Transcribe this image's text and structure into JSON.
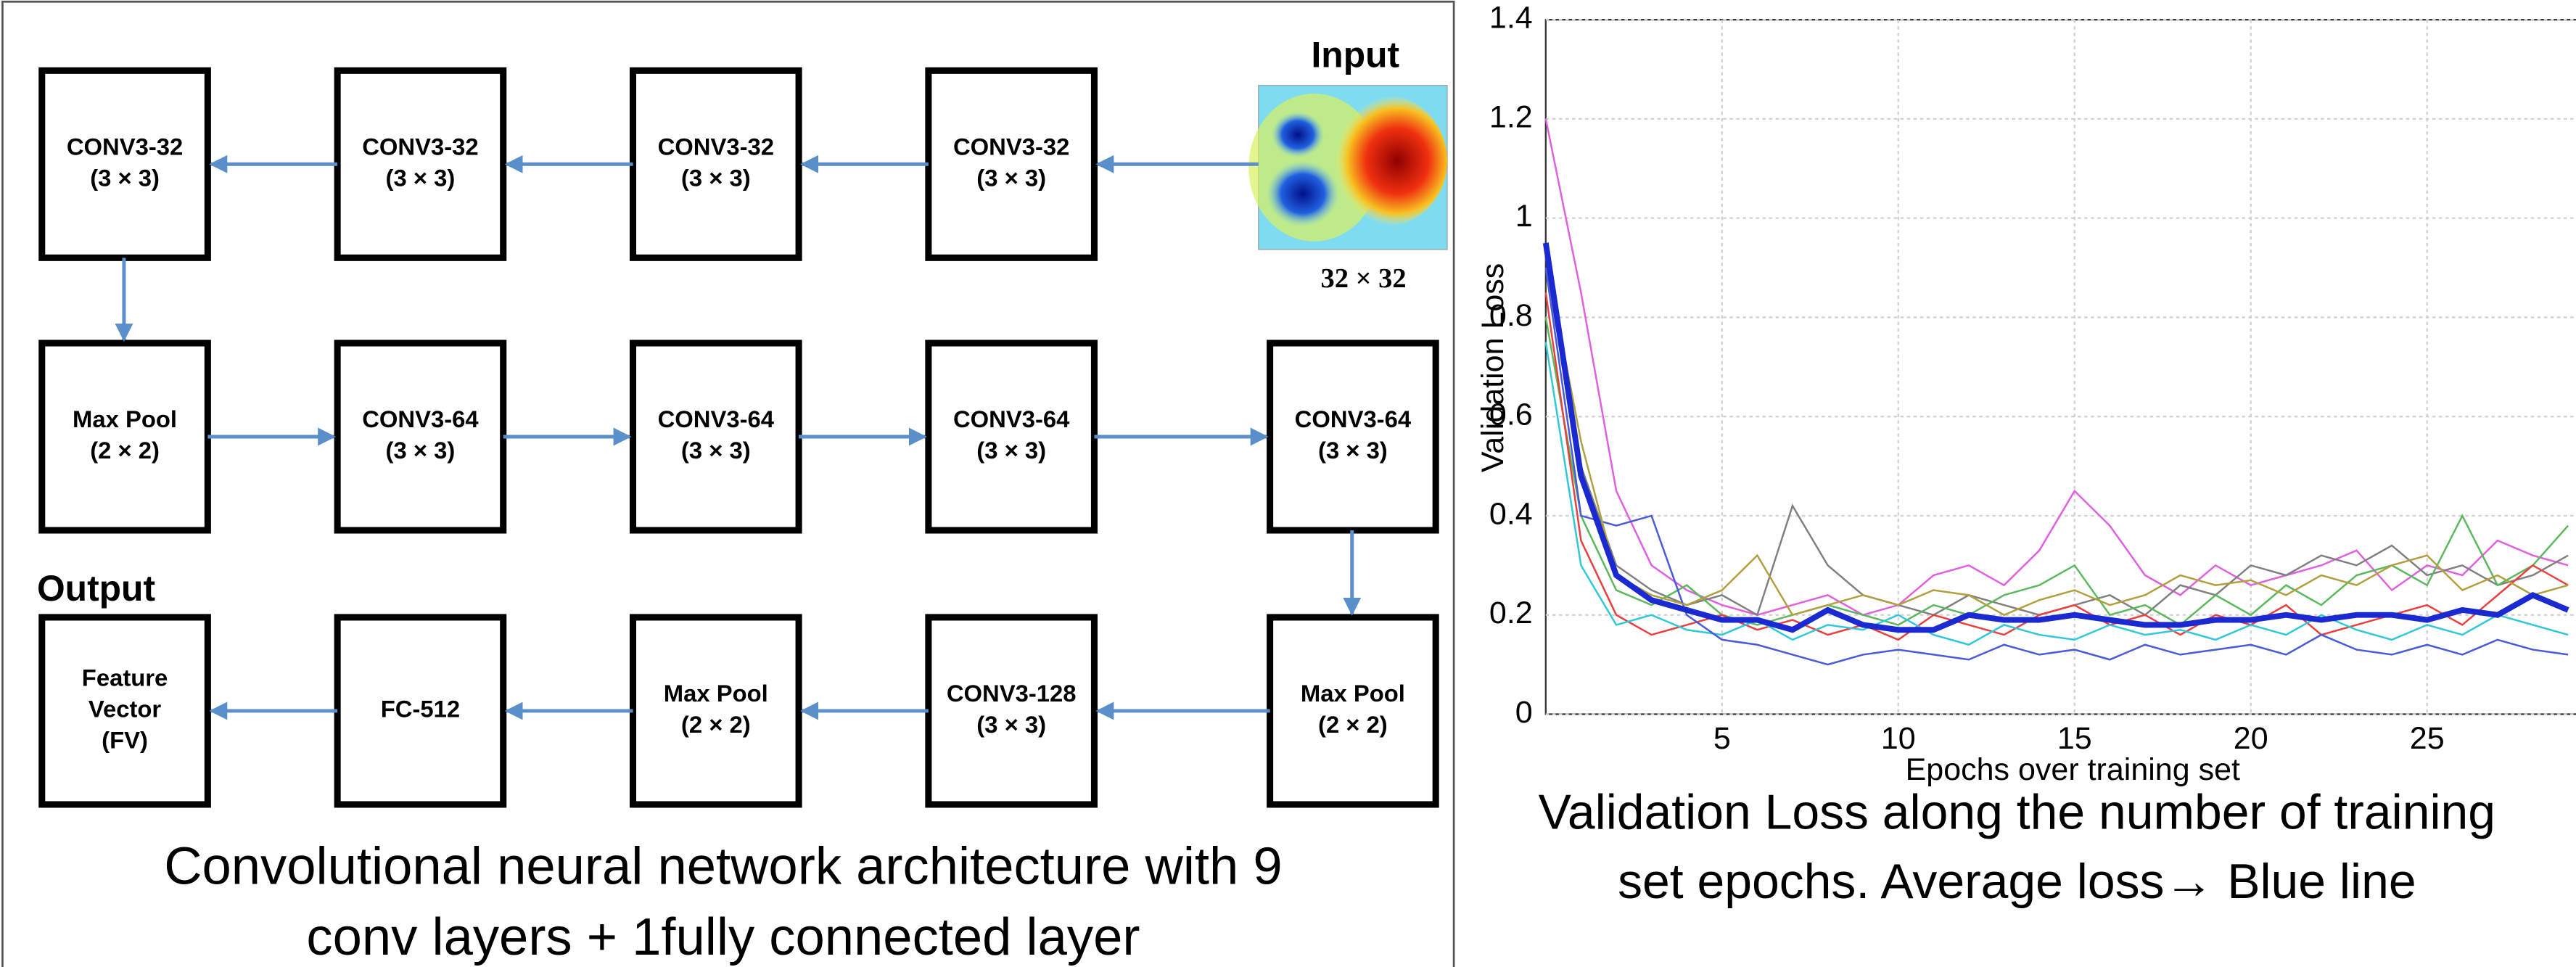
{
  "diagram": {
    "input_label": "Input",
    "input_size": "32 × 32",
    "output_label": "Output",
    "nodes": [
      {
        "label": [
          "CONV3-32",
          "(3 × 3)"
        ]
      },
      {
        "label": [
          "CONV3-32",
          "(3 × 3)"
        ]
      },
      {
        "label": [
          "CONV3-32",
          "(3 × 3)"
        ]
      },
      {
        "label": [
          "CONV3-32",
          "(3 × 3)"
        ]
      },
      {
        "label": [
          "Max Pool",
          "(2 × 2)"
        ]
      },
      {
        "label": [
          "CONV3-64",
          "(3 × 3)"
        ]
      },
      {
        "label": [
          "CONV3-64",
          "(3 × 3)"
        ]
      },
      {
        "label": [
          "CONV3-64",
          "(3 × 3)"
        ]
      },
      {
        "label": [
          "CONV3-64",
          "(3 × 3)"
        ]
      },
      {
        "label": [
          "Feature",
          "Vector",
          "(FV)"
        ]
      },
      {
        "label": [
          "FC-512"
        ]
      },
      {
        "label": [
          "Max Pool",
          "(2 × 2)"
        ]
      },
      {
        "label": [
          "CONV3-128",
          "(3 × 3)"
        ]
      },
      {
        "label": [
          "Max Pool",
          "(2 × 2)"
        ]
      }
    ],
    "caption": [
      "Convolutional neural network architecture with 9",
      "conv layers + 1fully connected layer"
    ]
  },
  "chart_data": {
    "type": "line",
    "x_label": "Epochs over training set",
    "y_label": "Validation Loss",
    "caption": [
      "Validation Loss along the number of training",
      "set epochs. Average loss→ Blue line"
    ],
    "x": [
      0,
      1,
      2,
      3,
      4,
      5,
      6,
      7,
      8,
      9,
      10,
      11,
      12,
      13,
      14,
      15,
      16,
      17,
      18,
      19,
      20,
      21,
      22,
      23,
      24,
      25,
      26,
      27,
      28,
      29
    ],
    "xlim": [
      0,
      29.2
    ],
    "xticks": [
      5,
      10,
      15,
      20,
      25
    ],
    "ylim": [
      0,
      1.4
    ],
    "yticks": [
      0,
      0.2,
      0.4,
      0.6,
      0.8,
      1,
      1.2,
      1.4
    ],
    "grid": true,
    "series": [
      {
        "color": "#e060e0",
        "values": [
          1.2,
          0.85,
          0.45,
          0.3,
          0.25,
          0.22,
          0.2,
          0.22,
          0.24,
          0.2,
          0.22,
          0.28,
          0.3,
          0.26,
          0.33,
          0.45,
          0.38,
          0.28,
          0.24,
          0.3,
          0.26,
          0.28,
          0.3,
          0.33,
          0.25,
          0.3,
          0.28,
          0.35,
          0.32,
          0.3
        ]
      },
      {
        "color": "#808080",
        "values": [
          0.9,
          0.5,
          0.3,
          0.25,
          0.22,
          0.24,
          0.2,
          0.42,
          0.3,
          0.24,
          0.22,
          0.2,
          0.24,
          0.22,
          0.2,
          0.22,
          0.24,
          0.2,
          0.26,
          0.24,
          0.3,
          0.28,
          0.32,
          0.3,
          0.34,
          0.28,
          0.3,
          0.26,
          0.28,
          0.32
        ]
      },
      {
        "color": "#5cb85c",
        "values": [
          0.8,
          0.4,
          0.25,
          0.22,
          0.26,
          0.2,
          0.18,
          0.2,
          0.22,
          0.2,
          0.18,
          0.22,
          0.2,
          0.24,
          0.26,
          0.3,
          0.2,
          0.22,
          0.18,
          0.24,
          0.2,
          0.26,
          0.22,
          0.28,
          0.3,
          0.26,
          0.4,
          0.26,
          0.3,
          0.38
        ]
      },
      {
        "color": "#e84040",
        "values": [
          0.85,
          0.35,
          0.2,
          0.16,
          0.18,
          0.2,
          0.17,
          0.19,
          0.16,
          0.18,
          0.15,
          0.2,
          0.18,
          0.16,
          0.2,
          0.22,
          0.18,
          0.2,
          0.16,
          0.2,
          0.18,
          0.22,
          0.16,
          0.18,
          0.2,
          0.22,
          0.18,
          0.24,
          0.3,
          0.26
        ]
      },
      {
        "color": "#30c8d8",
        "values": [
          0.75,
          0.3,
          0.18,
          0.2,
          0.17,
          0.16,
          0.19,
          0.15,
          0.18,
          0.17,
          0.2,
          0.16,
          0.14,
          0.18,
          0.16,
          0.15,
          0.18,
          0.16,
          0.17,
          0.15,
          0.18,
          0.16,
          0.2,
          0.17,
          0.15,
          0.18,
          0.16,
          0.2,
          0.18,
          0.16
        ]
      },
      {
        "color": "#4a5ad8",
        "values": [
          0.9,
          0.4,
          0.38,
          0.4,
          0.2,
          0.15,
          0.14,
          0.12,
          0.1,
          0.12,
          0.13,
          0.12,
          0.11,
          0.14,
          0.12,
          0.13,
          0.11,
          0.14,
          0.12,
          0.13,
          0.14,
          0.12,
          0.16,
          0.13,
          0.12,
          0.14,
          0.12,
          0.15,
          0.13,
          0.12
        ]
      },
      {
        "color": "#b0a040",
        "values": [
          0.92,
          0.55,
          0.28,
          0.24,
          0.22,
          0.25,
          0.32,
          0.2,
          0.22,
          0.24,
          0.22,
          0.25,
          0.24,
          0.2,
          0.23,
          0.25,
          0.22,
          0.24,
          0.28,
          0.26,
          0.27,
          0.24,
          0.28,
          0.26,
          0.3,
          0.32,
          0.25,
          0.28,
          0.24,
          0.26
        ]
      },
      {
        "color": "#1a2ad0",
        "width": 3.5,
        "values": [
          0.95,
          0.48,
          0.28,
          0.23,
          0.21,
          0.19,
          0.19,
          0.17,
          0.21,
          0.18,
          0.17,
          0.17,
          0.2,
          0.19,
          0.19,
          0.2,
          0.19,
          0.18,
          0.18,
          0.19,
          0.19,
          0.2,
          0.19,
          0.2,
          0.2,
          0.19,
          0.21,
          0.2,
          0.24,
          0.21
        ]
      }
    ]
  }
}
